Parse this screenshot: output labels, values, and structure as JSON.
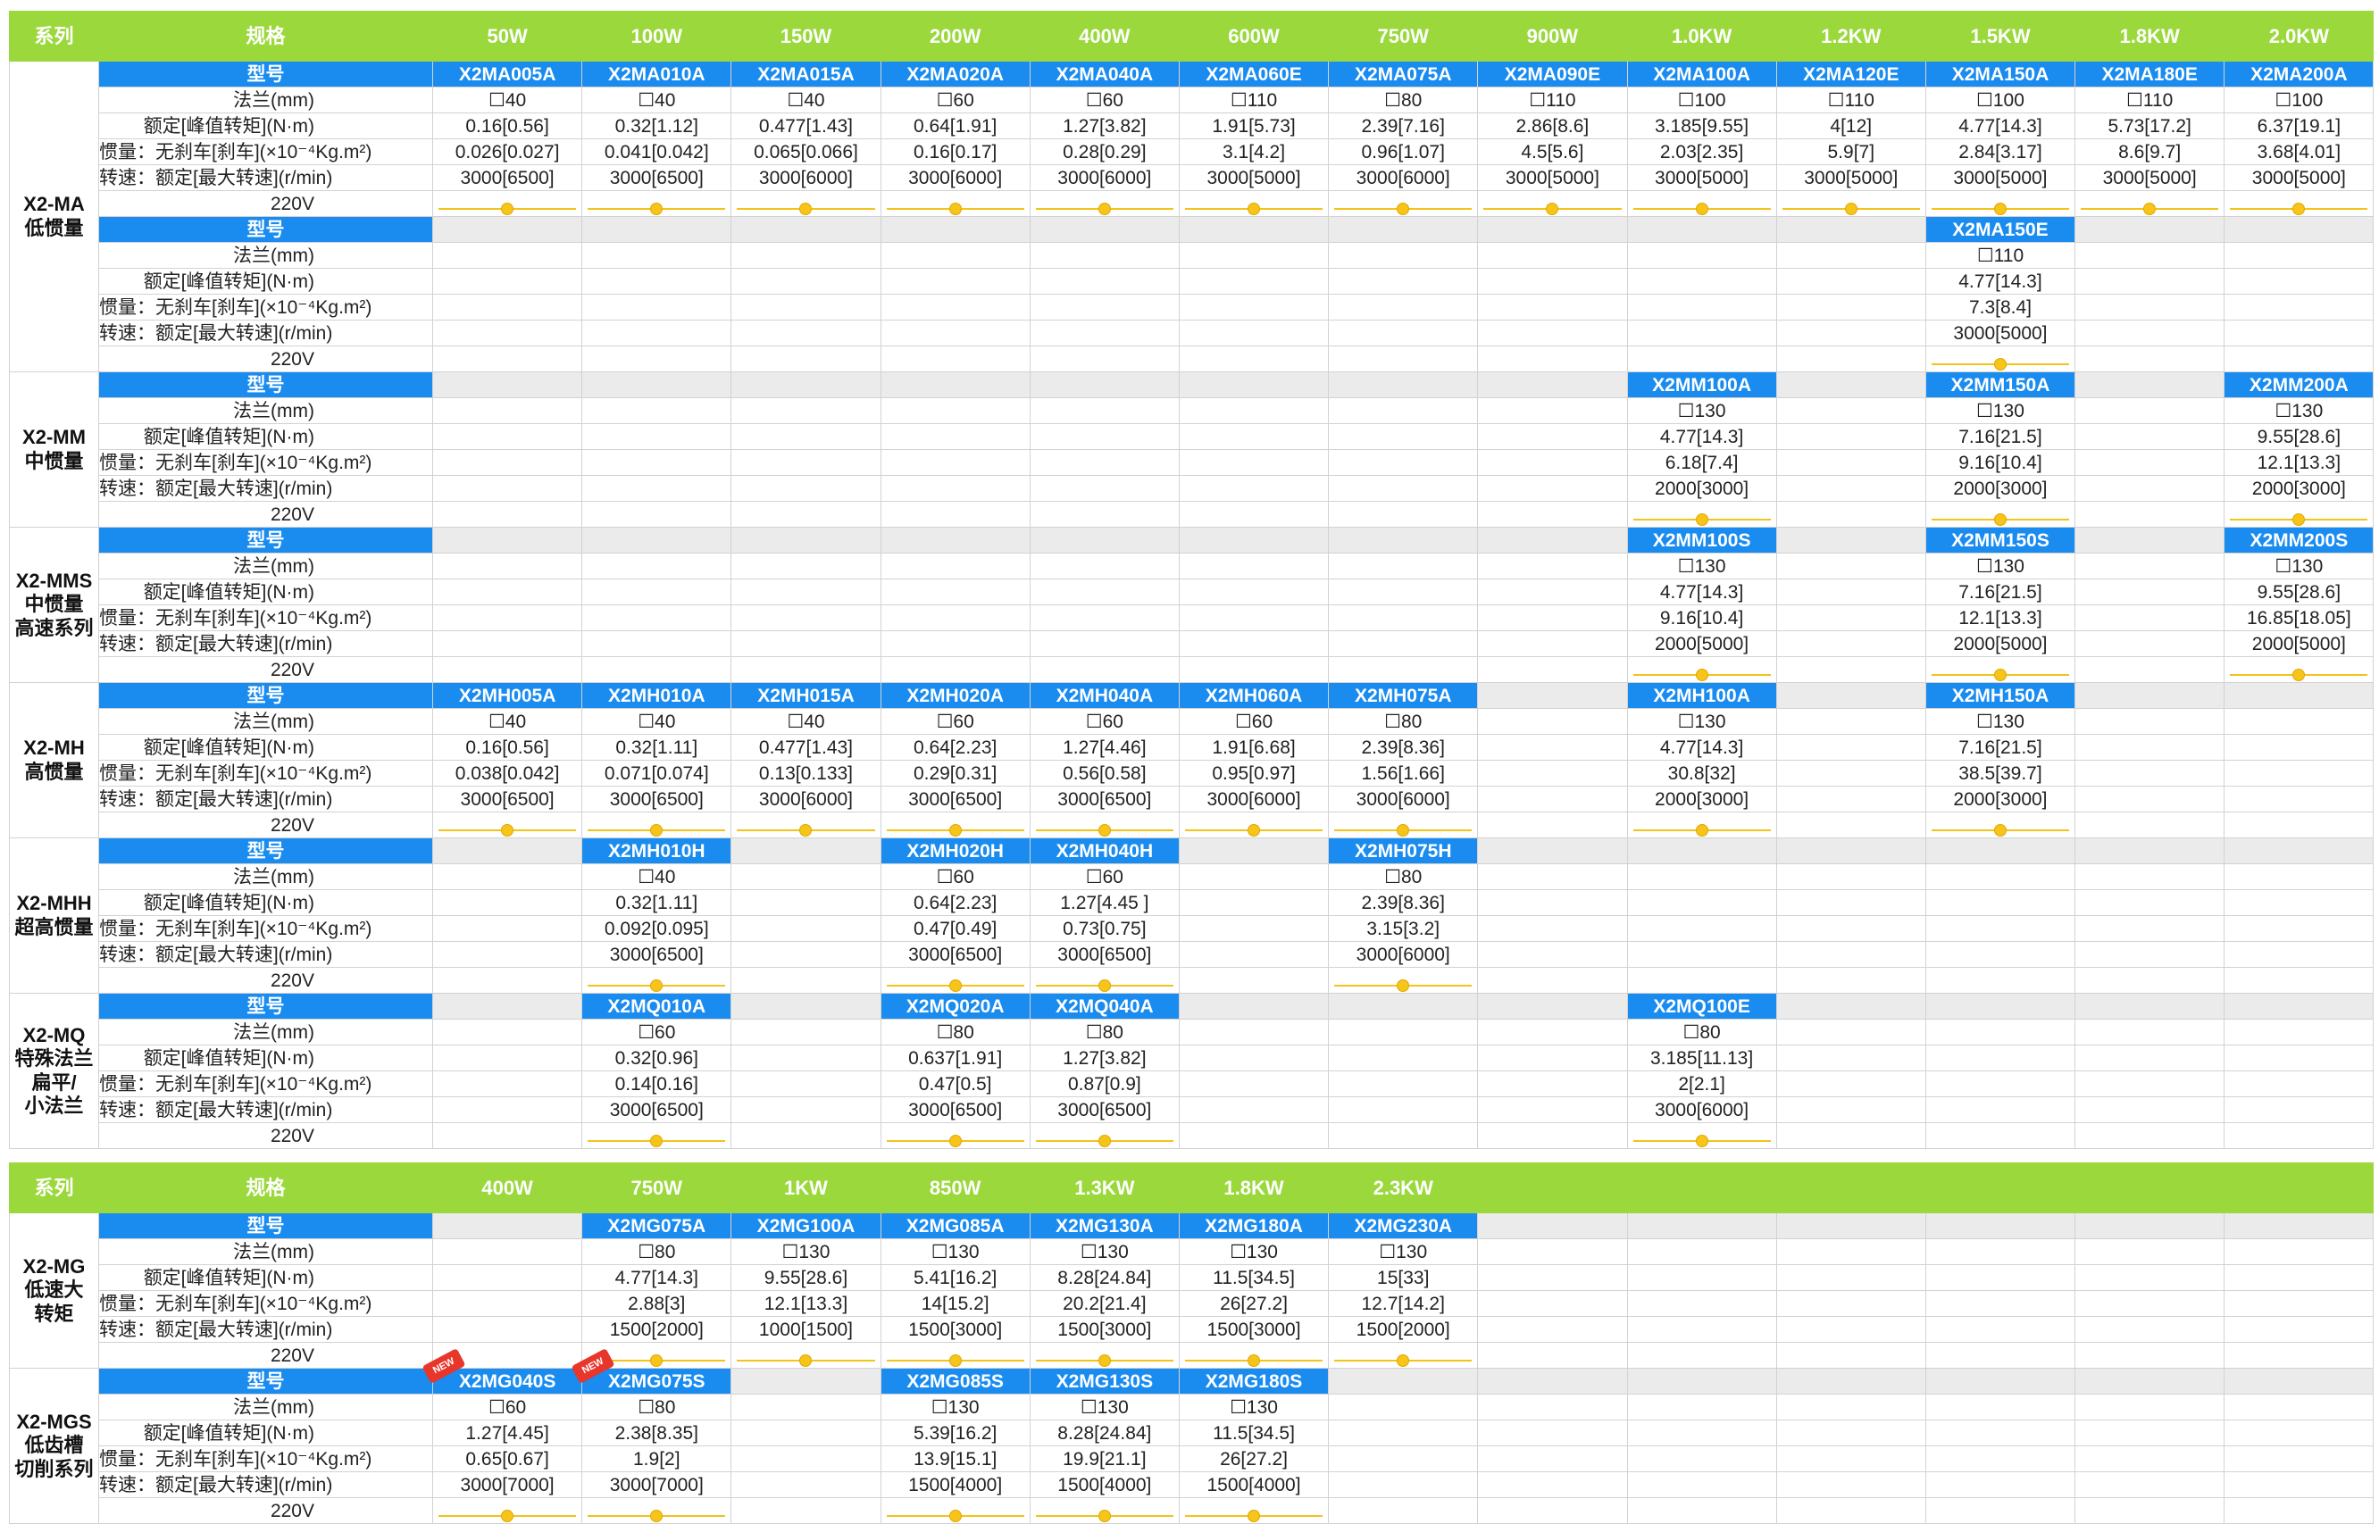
{
  "colors": {
    "header_green": "#9ad83c",
    "model_blue": "#1a8cf0",
    "empty_gray": "#ebebeb",
    "voltage_yellow": "#f2c318",
    "new_badge_red": "#e8362b"
  },
  "icons": {
    "voltage_marker": "yellow-dot-icon",
    "new_badge": "new-badge-icon"
  },
  "labels": {
    "model": "型号",
    "flange": "法兰(mm)",
    "torque": "额定[峰值转矩](N·m)",
    "inertia": "惯量：无刹车[刹车](×10⁻⁴Kg.m²)",
    "speed": "转速：额定[最大转速](r/min)",
    "voltage": "220V"
  },
  "table1": {
    "header": [
      "系列",
      "规格",
      "50W",
      "100W",
      "150W",
      "200W",
      "400W",
      "600W",
      "750W",
      "900W",
      "1.0KW",
      "1.2KW",
      "1.5KW",
      "1.8KW",
      "2.0KW"
    ],
    "groups": [
      {
        "series": [
          "X2-MA",
          "低惯量"
        ],
        "blocks": [
          {
            "cells": [
              {
                "model": "X2MA005A",
                "flange": "☐40",
                "torque": "0.16[0.56]",
                "inertia": "0.026[0.027]",
                "speed": "3000[6500]",
                "v": 1
              },
              {
                "model": "X2MA010A",
                "flange": "☐40",
                "torque": "0.32[1.12]",
                "inertia": "0.041[0.042]",
                "speed": "3000[6500]",
                "v": 1
              },
              {
                "model": "X2MA015A",
                "flange": "☐40",
                "torque": "0.477[1.43]",
                "inertia": "0.065[0.066]",
                "speed": "3000[6000]",
                "v": 1
              },
              {
                "model": "X2MA020A",
                "flange": "☐60",
                "torque": "0.64[1.91]",
                "inertia": "0.16[0.17]",
                "speed": "3000[6000]",
                "v": 1
              },
              {
                "model": "X2MA040A",
                "flange": "☐60",
                "torque": "1.27[3.82]",
                "inertia": "0.28[0.29]",
                "speed": "3000[6000]",
                "v": 1
              },
              {
                "model": "X2MA060E",
                "flange": "☐110",
                "torque": "1.91[5.73]",
                "inertia": "3.1[4.2]",
                "speed": "3000[5000]",
                "v": 1
              },
              {
                "model": "X2MA075A",
                "flange": "☐80",
                "torque": "2.39[7.16]",
                "inertia": "0.96[1.07]",
                "speed": "3000[6000]",
                "v": 1
              },
              {
                "model": "X2MA090E",
                "flange": "☐110",
                "torque": "2.86[8.6]",
                "inertia": "4.5[5.6]",
                "speed": "3000[5000]",
                "v": 1
              },
              {
                "model": "X2MA100A",
                "flange": "☐100",
                "torque": "3.185[9.55]",
                "inertia": "2.03[2.35]",
                "speed": "3000[5000]",
                "v": 1
              },
              {
                "model": "X2MA120E",
                "flange": "☐110",
                "torque": "4[12]",
                "inertia": "5.9[7]",
                "speed": "3000[5000]",
                "v": 1
              },
              {
                "model": "X2MA150A",
                "flange": "☐100",
                "torque": "4.77[14.3]",
                "inertia": "2.84[3.17]",
                "speed": "3000[5000]",
                "v": 1
              },
              {
                "model": "X2MA180E",
                "flange": "☐110",
                "torque": "5.73[17.2]",
                "inertia": "8.6[9.7]",
                "speed": "3000[5000]",
                "v": 1
              },
              {
                "model": "X2MA200A",
                "flange": "☐100",
                "torque": "6.37[19.1]",
                "inertia": "3.68[4.01]",
                "speed": "3000[5000]",
                "v": 1
              }
            ]
          },
          {
            "cells": [
              null,
              null,
              null,
              null,
              null,
              null,
              null,
              null,
              null,
              null,
              {
                "model": "X2MA150E",
                "flange": "☐110",
                "torque": "4.77[14.3]",
                "inertia": "7.3[8.4]",
                "speed": "3000[5000]",
                "v": 1
              },
              null,
              null
            ]
          }
        ]
      },
      {
        "series": [
          "X2-MM",
          "中惯量"
        ],
        "blocks": [
          {
            "cells": [
              null,
              null,
              null,
              null,
              null,
              null,
              null,
              null,
              {
                "model": "X2MM100A",
                "flange": "☐130",
                "torque": "4.77[14.3]",
                "inertia": "6.18[7.4]",
                "speed": "2000[3000]",
                "v": 1
              },
              null,
              {
                "model": "X2MM150A",
                "flange": "☐130",
                "torque": "7.16[21.5]",
                "inertia": "9.16[10.4]",
                "speed": "2000[3000]",
                "v": 1
              },
              null,
              {
                "model": "X2MM200A",
                "flange": "☐130",
                "torque": "9.55[28.6]",
                "inertia": "12.1[13.3]",
                "speed": "2000[3000]",
                "v": 1
              }
            ]
          }
        ]
      },
      {
        "series": [
          "X2-MMS",
          "中惯量",
          "高速系列"
        ],
        "blocks": [
          {
            "cells": [
              null,
              null,
              null,
              null,
              null,
              null,
              null,
              null,
              {
                "model": "X2MM100S",
                "flange": "☐130",
                "torque": "4.77[14.3]",
                "inertia": "9.16[10.4]",
                "speed": "2000[5000]",
                "v": 1
              },
              null,
              {
                "model": "X2MM150S",
                "flange": "☐130",
                "torque": "7.16[21.5]",
                "inertia": "12.1[13.3]",
                "speed": "2000[5000]",
                "v": 1
              },
              null,
              {
                "model": "X2MM200S",
                "flange": "☐130",
                "torque": "9.55[28.6]",
                "inertia": "16.85[18.05]",
                "speed": "2000[5000]",
                "v": 1
              }
            ]
          }
        ]
      },
      {
        "series": [
          "X2-MH",
          "高惯量"
        ],
        "blocks": [
          {
            "cells": [
              {
                "model": "X2MH005A",
                "flange": "☐40",
                "torque": "0.16[0.56]",
                "inertia": "0.038[0.042]",
                "speed": "3000[6500]",
                "v": 1
              },
              {
                "model": "X2MH010A",
                "flange": "☐40",
                "torque": "0.32[1.11]",
                "inertia": "0.071[0.074]",
                "speed": "3000[6500]",
                "v": 1
              },
              {
                "model": "X2MH015A",
                "flange": "☐40",
                "torque": "0.477[1.43]",
                "inertia": "0.13[0.133]",
                "speed": "3000[6000]",
                "v": 1
              },
              {
                "model": "X2MH020A",
                "flange": "☐60",
                "torque": "0.64[2.23]",
                "inertia": "0.29[0.31]",
                "speed": "3000[6500]",
                "v": 1
              },
              {
                "model": "X2MH040A",
                "flange": "☐60",
                "torque": "1.27[4.46]",
                "inertia": "0.56[0.58]",
                "speed": "3000[6500]",
                "v": 1
              },
              {
                "model": "X2MH060A",
                "flange": "☐60",
                "torque": "1.91[6.68]",
                "inertia": "0.95[0.97]",
                "speed": "3000[6000]",
                "v": 1
              },
              {
                "model": "X2MH075A",
                "flange": "☐80",
                "torque": "2.39[8.36]",
                "inertia": "1.56[1.66]",
                "speed": "3000[6000]",
                "v": 1
              },
              null,
              {
                "model": "X2MH100A",
                "flange": "☐130",
                "torque": "4.77[14.3]",
                "inertia": "30.8[32]",
                "speed": "2000[3000]",
                "v": 1
              },
              null,
              {
                "model": "X2MH150A",
                "flange": "☐130",
                "torque": "7.16[21.5]",
                "inertia": "38.5[39.7]",
                "speed": "2000[3000]",
                "v": 1
              },
              null,
              null
            ]
          }
        ]
      },
      {
        "series": [
          "X2-MHH",
          "超高惯量"
        ],
        "blocks": [
          {
            "cells": [
              null,
              {
                "model": "X2MH010H",
                "flange": "☐40",
                "torque": "0.32[1.11]",
                "inertia": "0.092[0.095]",
                "speed": "3000[6500]",
                "v": 1
              },
              null,
              {
                "model": "X2MH020H",
                "flange": "☐60",
                "torque": "0.64[2.23]",
                "inertia": "0.47[0.49]",
                "speed": "3000[6500]",
                "v": 1
              },
              {
                "model": "X2MH040H",
                "flange": "☐60",
                "torque": "1.27[4.45 ]",
                "inertia": "0.73[0.75]",
                "speed": "3000[6500]",
                "v": 1
              },
              null,
              {
                "model": "X2MH075H",
                "flange": "☐80",
                "torque": "2.39[8.36]",
                "inertia": "3.15[3.2]",
                "speed": "3000[6000]",
                "v": 1
              },
              null,
              null,
              null,
              null,
              null,
              null
            ]
          }
        ]
      },
      {
        "series": [
          "X2-MQ",
          "特殊法兰",
          "扁平/",
          "小法兰"
        ],
        "blocks": [
          {
            "cells": [
              null,
              {
                "model": "X2MQ010A",
                "flange": "☐60",
                "torque": "0.32[0.96]",
                "inertia": "0.14[0.16]",
                "speed": "3000[6500]",
                "v": 1
              },
              null,
              {
                "model": "X2MQ020A",
                "flange": "☐80",
                "torque": "0.637[1.91]",
                "inertia": "0.47[0.5]",
                "speed": "3000[6500]",
                "v": 1
              },
              {
                "model": "X2MQ040A",
                "flange": "☐80",
                "torque": "1.27[3.82]",
                "inertia": "0.87[0.9]",
                "speed": "3000[6500]",
                "v": 1
              },
              null,
              null,
              null,
              {
                "model": "X2MQ100E",
                "flange": "☐80",
                "torque": "3.185[11.13]",
                "inertia": "2[2.1]",
                "speed": "3000[6000]",
                "v": 1
              },
              null,
              null,
              null,
              null
            ]
          }
        ]
      }
    ]
  },
  "table2": {
    "header": [
      "系列",
      "规格",
      "400W",
      "750W",
      "1KW",
      "850W",
      "1.3KW",
      "1.8KW",
      "2.3KW",
      "",
      "",
      "",
      "",
      "",
      ""
    ],
    "groups": [
      {
        "series": [
          "X2-MG",
          "低速大",
          "转矩"
        ],
        "blocks": [
          {
            "cells": [
              null,
              {
                "model": "X2MG075A",
                "flange": "☐80",
                "torque": "4.77[14.3]",
                "inertia": "2.88[3]",
                "speed": "1500[2000]",
                "v": 1
              },
              {
                "model": "X2MG100A",
                "flange": "☐130",
                "torque": "9.55[28.6]",
                "inertia": "12.1[13.3]",
                "speed": "1000[1500]",
                "v": 1
              },
              {
                "model": "X2MG085A",
                "flange": "☐130",
                "torque": "5.41[16.2]",
                "inertia": "14[15.2]",
                "speed": "1500[3000]",
                "v": 1
              },
              {
                "model": "X2MG130A",
                "flange": "☐130",
                "torque": "8.28[24.84]",
                "inertia": "20.2[21.4]",
                "speed": "1500[3000]",
                "v": 1
              },
              {
                "model": "X2MG180A",
                "flange": "☐130",
                "torque": "11.5[34.5]",
                "inertia": "26[27.2]",
                "speed": "1500[3000]",
                "v": 1
              },
              {
                "model": "X2MG230A",
                "flange": "☐130",
                "torque": "15[33]",
                "inertia": "12.7[14.2]",
                "speed": "1500[2000]",
                "v": 1
              },
              null,
              null,
              null,
              null,
              null,
              null
            ]
          }
        ]
      },
      {
        "series": [
          "X2-MGS",
          "低齿槽",
          "切削系列"
        ],
        "blocks": [
          {
            "cells": [
              {
                "model": "X2MG040S",
                "flange": "☐60",
                "torque": "1.27[4.45]",
                "inertia": "0.65[0.67]",
                "speed": "3000[7000]",
                "v": 1,
                "badge": "NEW"
              },
              {
                "model": "X2MG075S",
                "flange": "☐80",
                "torque": "2.38[8.35]",
                "inertia": "1.9[2]",
                "speed": "3000[7000]",
                "v": 1,
                "badge": "NEW"
              },
              null,
              {
                "model": "X2MG085S",
                "flange": "☐130",
                "torque": "5.39[16.2]",
                "inertia": "13.9[15.1]",
                "speed": "1500[4000]",
                "v": 1
              },
              {
                "model": "X2MG130S",
                "flange": "☐130",
                "torque": "8.28[24.84]",
                "inertia": "19.9[21.1]",
                "speed": "1500[4000]",
                "v": 1
              },
              {
                "model": "X2MG180S",
                "flange": "☐130",
                "torque": "11.5[34.5]",
                "inertia": "26[27.2]",
                "speed": "1500[4000]",
                "v": 1
              },
              null,
              null,
              null,
              null,
              null,
              null,
              null
            ]
          }
        ]
      }
    ]
  }
}
